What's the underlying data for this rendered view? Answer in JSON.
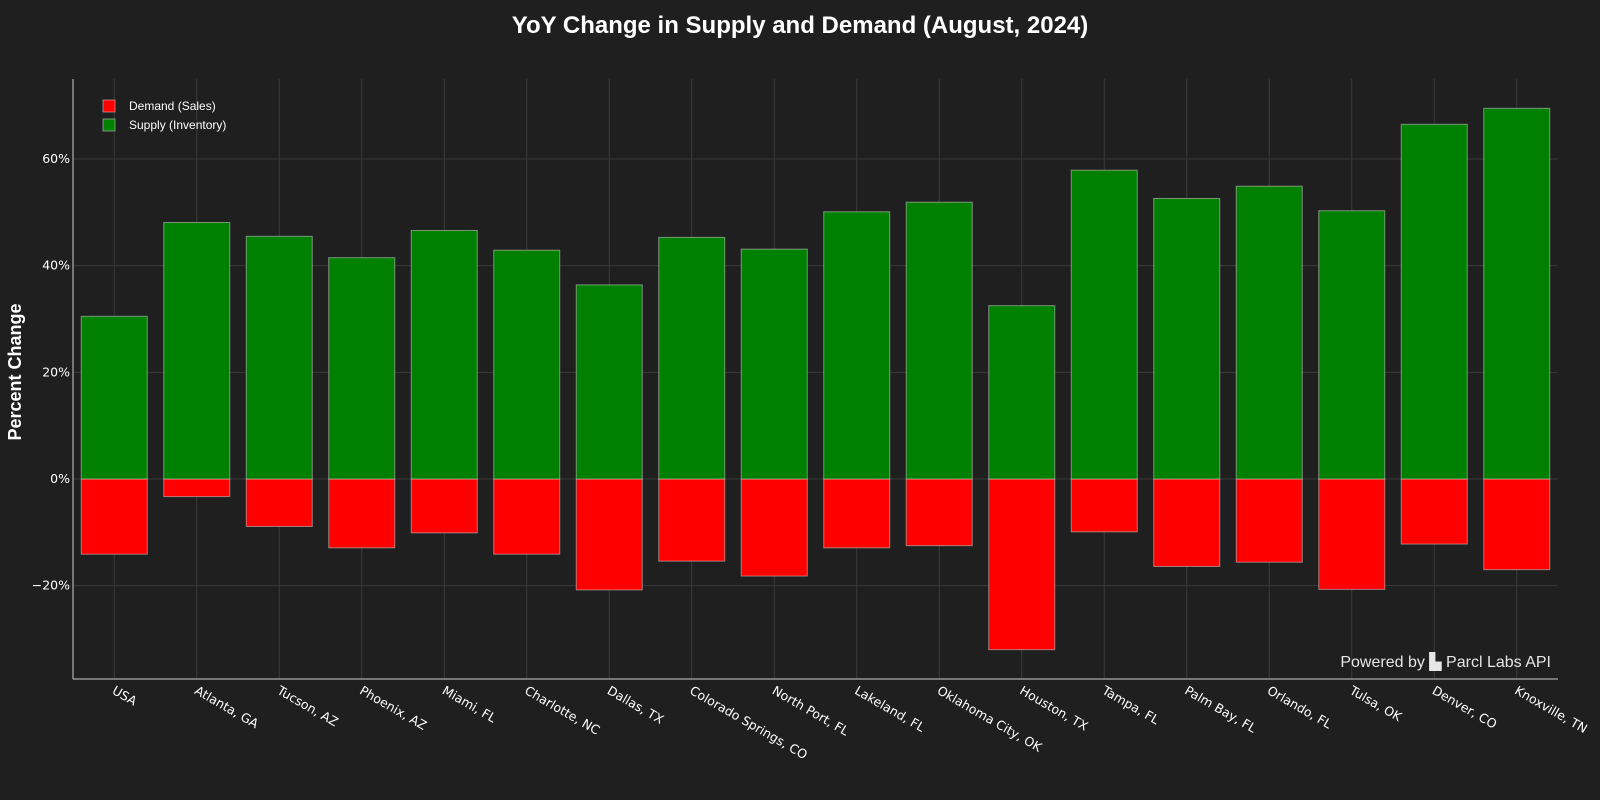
{
  "chart_data": {
    "type": "bar",
    "title": "YoY Change in Supply and Demand (August, 2024)",
    "xlabel": "",
    "ylabel": "Percent Change",
    "categories": [
      "USA",
      "Atlanta, GA",
      "Tucson, AZ",
      "Phoenix, AZ",
      "Miami, FL",
      "Charlotte, NC",
      "Dallas, TX",
      "Colorado Springs, CO",
      "North Port, FL",
      "Lakeland, FL",
      "Oklahoma City, OK",
      "Houston, TX",
      "Tampa, FL",
      "Palm Bay, FL",
      "Orlando, FL",
      "Tulsa, OK",
      "Denver, CO",
      "Knoxville, TN"
    ],
    "series": [
      {
        "name": "Demand (Sales)",
        "color": "#ff0000",
        "values": [
          -14.1,
          -3.3,
          -8.9,
          -12.9,
          -10.1,
          -14.1,
          -20.8,
          -15.4,
          -18.2,
          -12.9,
          -12.5,
          -32.0,
          -9.9,
          -16.4,
          -15.6,
          -20.7,
          -12.2,
          -17.0
        ]
      },
      {
        "name": "Supply (Inventory)",
        "color": "#008000",
        "values": [
          30.5,
          48.1,
          45.5,
          41.5,
          46.6,
          42.9,
          36.4,
          45.3,
          43.1,
          50.1,
          51.9,
          32.5,
          57.9,
          52.6,
          54.9,
          50.3,
          66.5,
          69.5
        ]
      }
    ],
    "barmode": "relative",
    "ylim": [
      -37.5,
      75
    ],
    "yticks": [
      -20,
      0,
      20,
      40,
      60
    ],
    "ytick_labels": [
      "−20%",
      "0%",
      "20%",
      "40%",
      "60%"
    ],
    "grid": true,
    "legend_position": "top-left",
    "background": "#1f1f1f",
    "grid_color": "#3a3a3a",
    "credit": "Powered by ▙ Parcl Labs API"
  }
}
